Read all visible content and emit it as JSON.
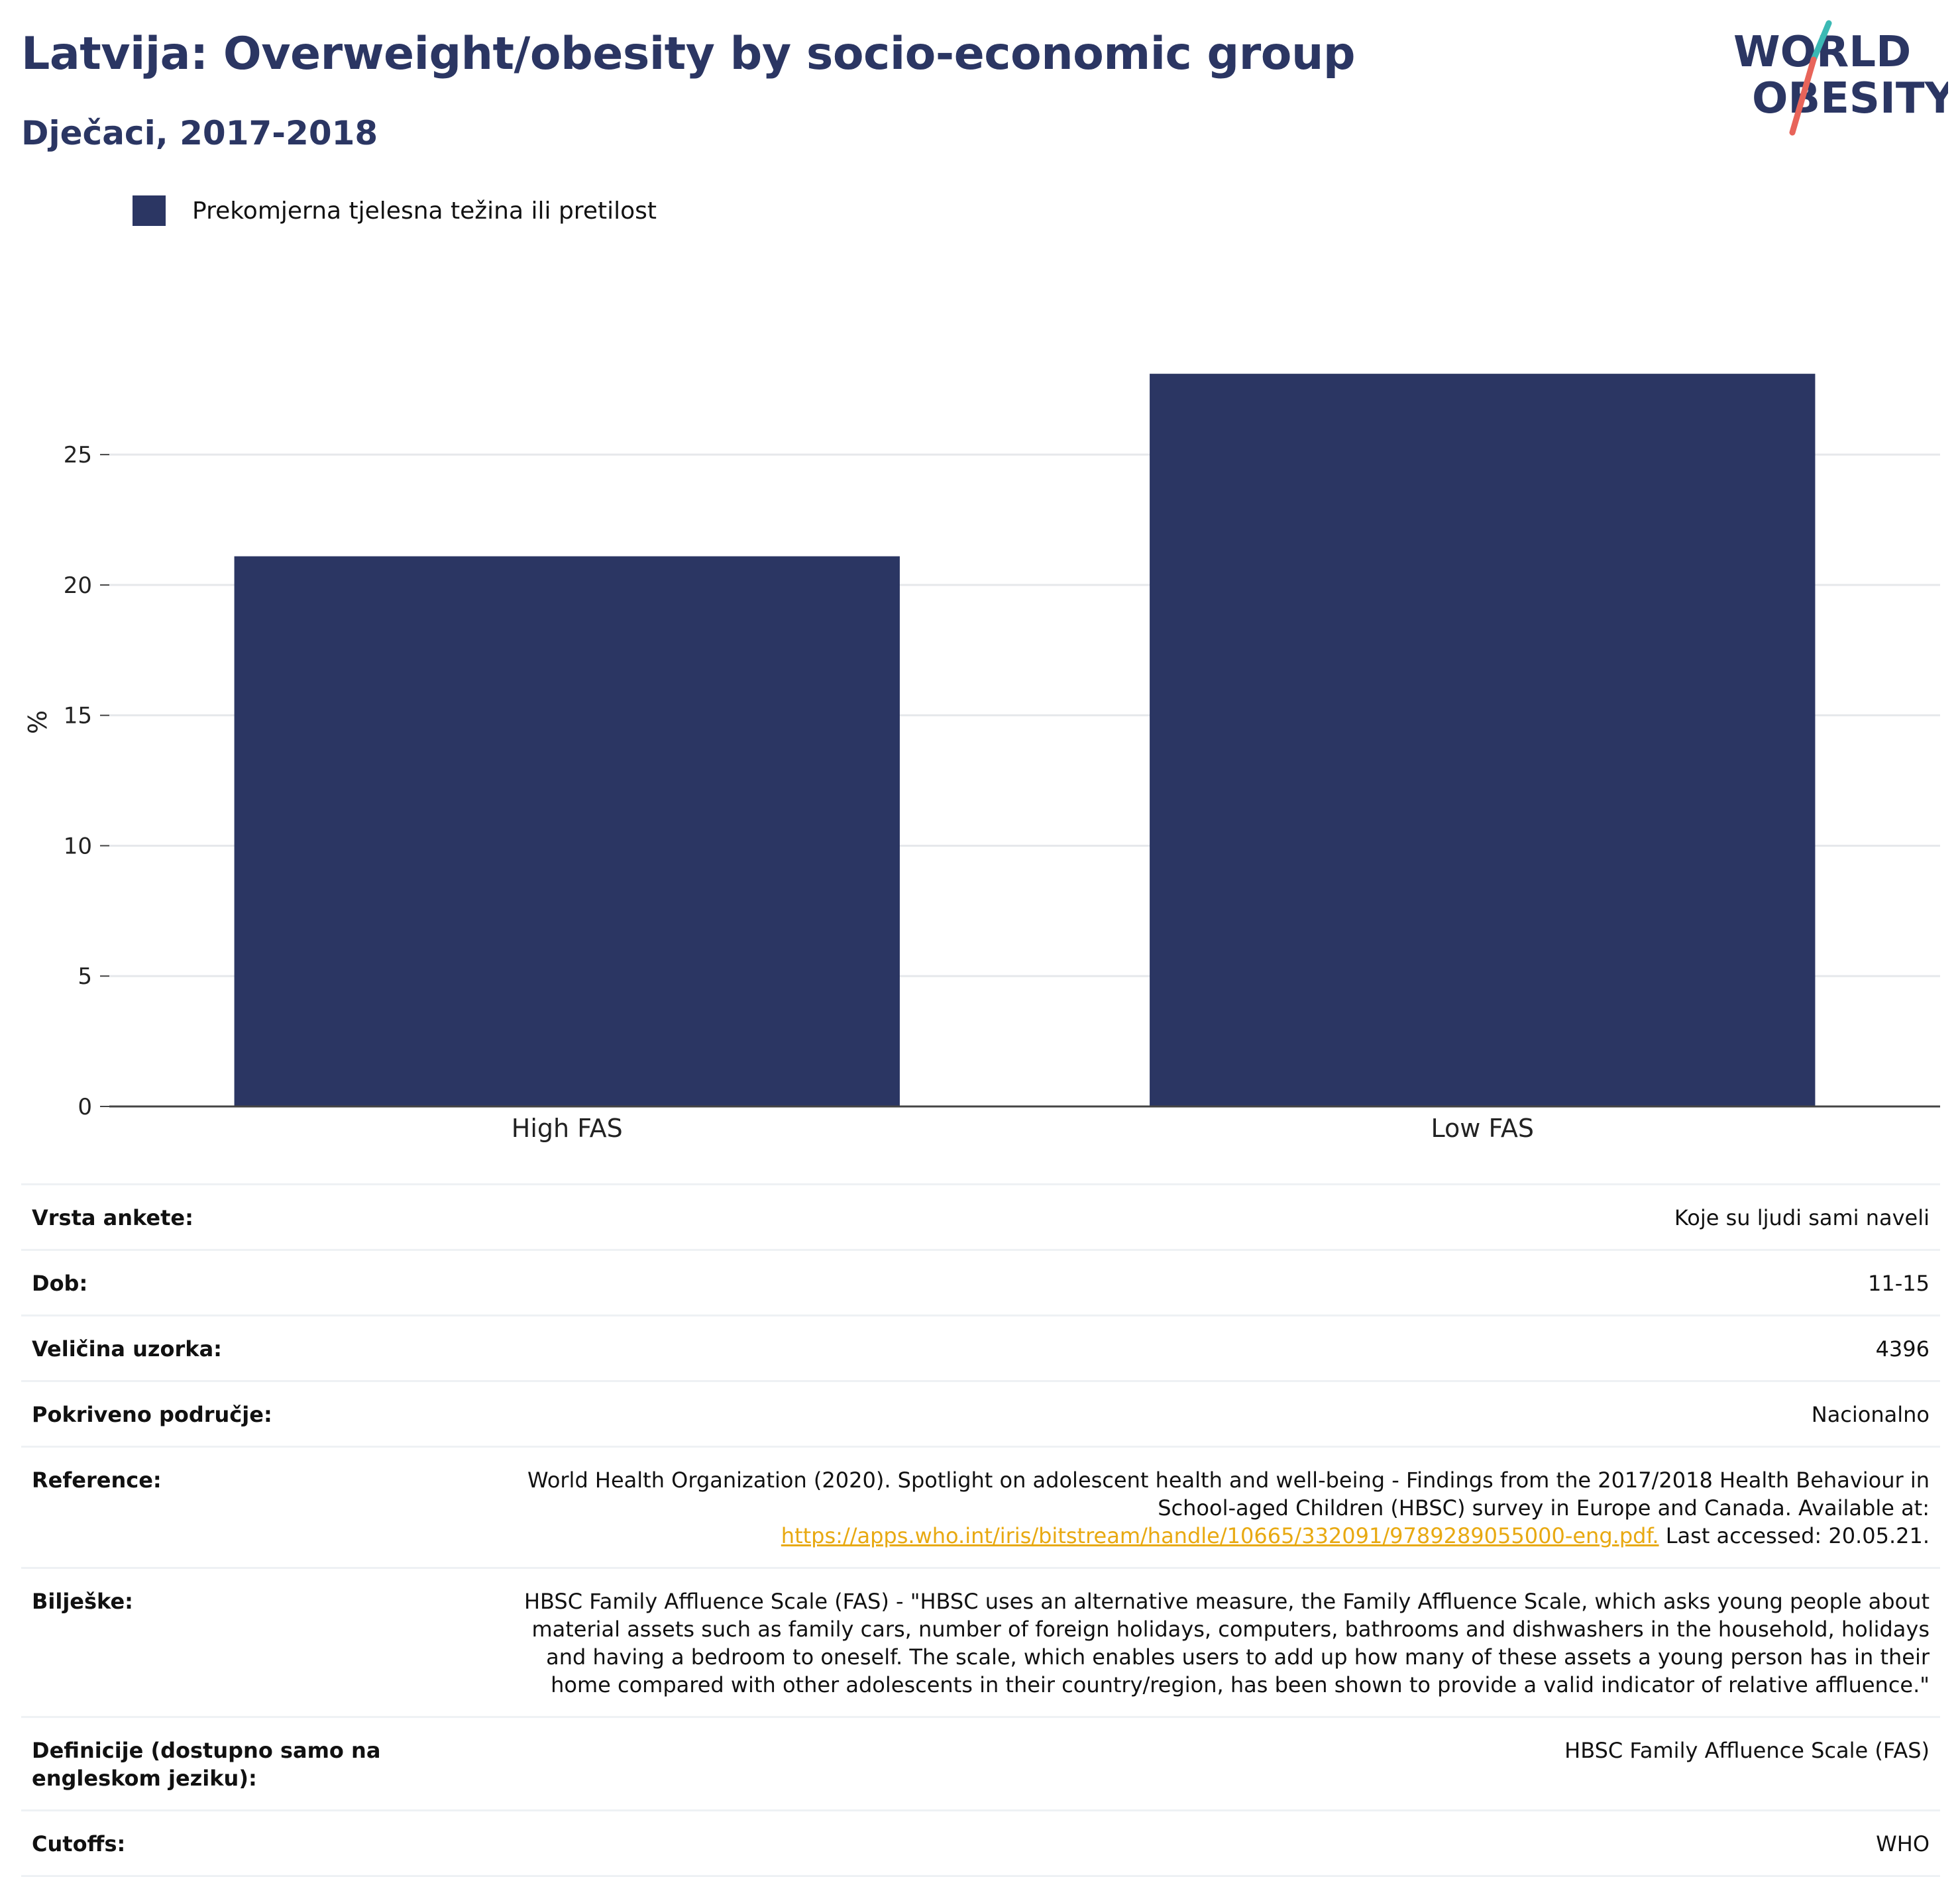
{
  "title": "Latvija: Overweight/obesity by socio-economic group",
  "subtitle": "Dječaci, 2017-2018",
  "logo": {
    "line1": "WORLD",
    "line2": "OBESITY",
    "colors": {
      "text": "#2b3663",
      "slash_teal": "#3bb9b4",
      "slash_coral": "#e8645a"
    }
  },
  "legend": {
    "label": "Prekomjerna tjelesna težina ili pretilost",
    "color": "#2b3663"
  },
  "chart_data": {
    "type": "bar",
    "categories": [
      "High FAS",
      "Low FAS"
    ],
    "series": [
      {
        "name": "Prekomjerna tjelesna težina ili pretilost",
        "values": [
          21.1,
          28.1
        ],
        "color": "#2b3663"
      }
    ],
    "ylabel": "%",
    "xlabel": "",
    "ylim": [
      0,
      31
    ],
    "yticks": [
      0,
      5,
      10,
      15,
      20,
      25
    ],
    "grid": true,
    "legend_position": "top-left"
  },
  "meta": {
    "survey_type": {
      "label": "Vrsta ankete:",
      "value": "Koje su ljudi sami naveli"
    },
    "age": {
      "label": "Dob:",
      "value": "11-15"
    },
    "sample": {
      "label": "Veličina uzorka:",
      "value": "4396"
    },
    "area": {
      "label": "Pokriveno područje:",
      "value": "Nacionalno"
    },
    "reference": {
      "label": "Reference:",
      "text_before": "World Health Organization (2020). Spotlight on adolescent health and well-being - Findings from the 2017/2018 Health Behaviour in School-aged Children (HBSC) survey in Europe and Canada. Available at:",
      "link": "https://apps.who.int/iris/bitstream/handle/10665/332091/9789289055000-eng.pdf.",
      "text_after": "Last accessed: 20.05.21."
    },
    "notes": {
      "label": "Bilješke:",
      "value": "HBSC Family Affluence Scale (FAS) - \"HBSC uses an alternative measure, the Family Affluence Scale, which asks young people about material assets such as family cars, number of foreign holidays, computers, bathrooms and dishwashers in the household, holidays and having a bedroom to oneself. The scale, which enables users to add up how many of these assets a young person has in their home compared with other adolescents in their country/region, has been shown to provide a valid indicator of relative affluence.\""
    },
    "definitions": {
      "label": "Definicije (dostupno samo na engleskom jeziku):",
      "value": "HBSC Family Affluence Scale (FAS)"
    },
    "cutoffs": {
      "label": "Cutoffs:",
      "value": "WHO"
    }
  }
}
